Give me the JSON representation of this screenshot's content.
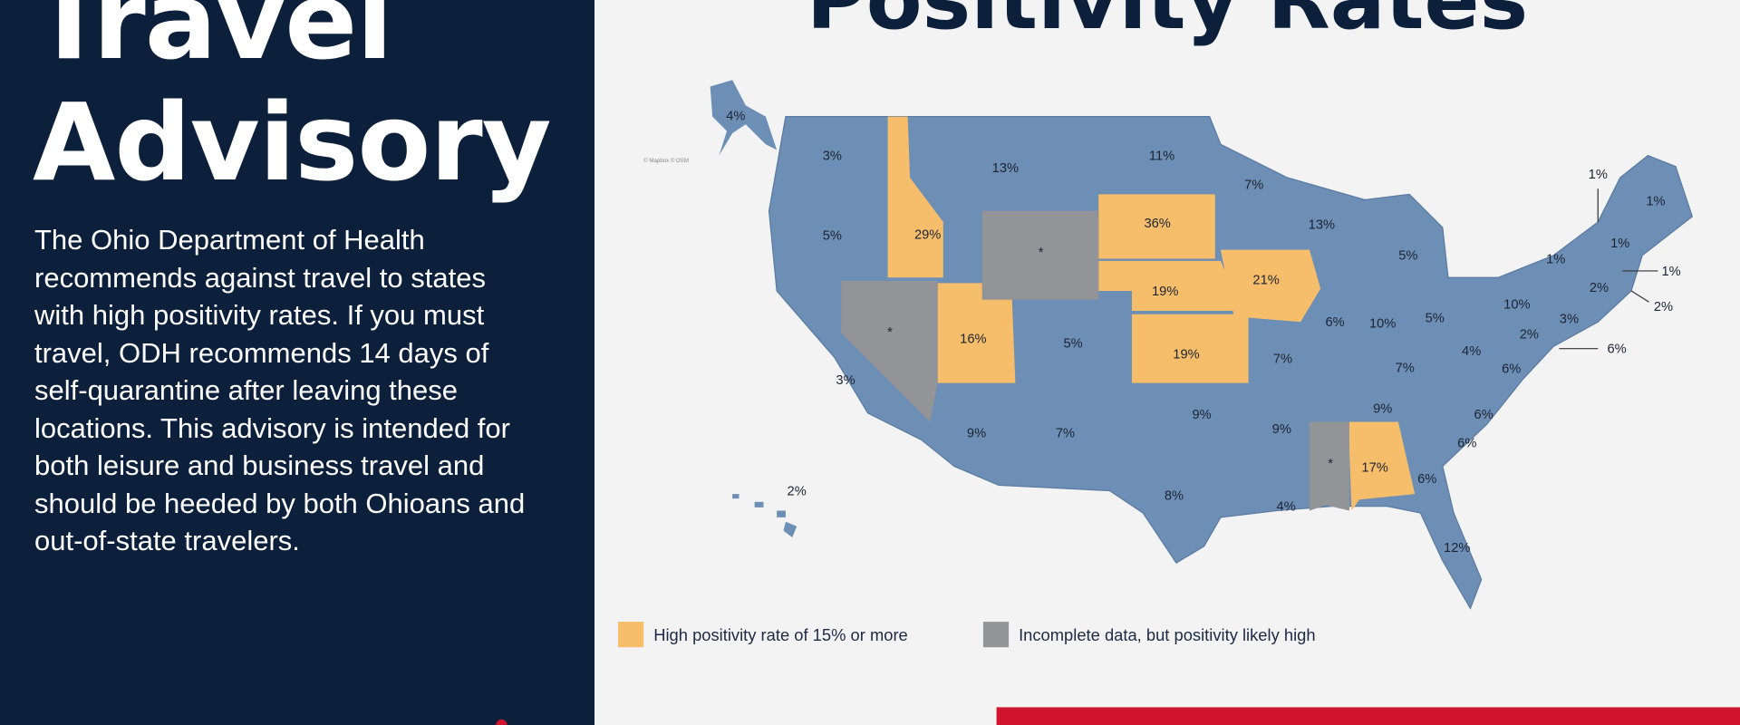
{
  "left_panel": {
    "title_line1": "Travel",
    "title_line2": "Advisory",
    "body": "The Ohio Department of Health recommends against travel to states with high positivity rates. If you must travel, ODH recommends 14 days of self-quarantine after leaving these locations. This advisory is intended for both leisure and business travel and should be heeded by both Ohioans and out-of-state travelers."
  },
  "headline": "Positivity Rates",
  "map": {
    "attribution": "© Mapbox © OSM",
    "colors": {
      "normal": "#6d8fb6",
      "high": "#f6bd6a",
      "incomplete": "#929497",
      "accent_red": "#d2152e"
    },
    "states": {
      "AK": "4%",
      "WA": "3%",
      "OR": "5%",
      "ID": "29%",
      "MT": "13%",
      "WY": "*",
      "ND": "11%",
      "SD": "36%",
      "NE": "19%",
      "KS": "19%",
      "MN": "7%",
      "IA": "21%",
      "WI": "13%",
      "MI": "5%",
      "NV": "*",
      "UT": "16%",
      "CO": "5%",
      "CA": "3%",
      "AZ": "9%",
      "NM": "7%",
      "OK": "9%",
      "TX": "8%",
      "MO": "7%",
      "AR": "9%",
      "LA": "4%",
      "MS": "*",
      "AL": "17%",
      "GA": "6%",
      "FL": "12%",
      "SC": "6%",
      "NC": "6%",
      "TN": "9%",
      "KY": "7%",
      "IL": "6%",
      "IN": "10%",
      "OH": "5%",
      "WV": "4%",
      "VA": "6%",
      "PA": "10%",
      "NY": "1%",
      "VT": "1%",
      "ME": "1%",
      "NH": "1%",
      "MA": "1%",
      "RI": "2%",
      "CT": "2%",
      "NJ": "3%",
      "DE": "6%",
      "MD": "2%",
      "HI": "2%"
    }
  },
  "legend": {
    "high": "High positivity rate of 15% or more",
    "incomplete": "Incomplete data, but positivity likely high"
  }
}
